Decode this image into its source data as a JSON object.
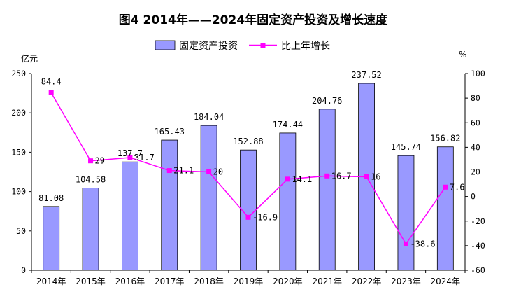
{
  "chart_data": {
    "type": "bar",
    "title": "图4  2014年——2024年固定资产投资及增长速度",
    "categories": [
      "2014年",
      "2015年",
      "2016年",
      "2017年",
      "2018年",
      "2019年",
      "2020年",
      "2021年",
      "2022年",
      "2023年",
      "2024年"
    ],
    "series": [
      {
        "name": "固定资产投资",
        "type": "bar",
        "axis": "left",
        "color": "#9999ff",
        "values": [
          81.08,
          104.58,
          137.7,
          165.43,
          184.04,
          152.88,
          174.44,
          204.76,
          237.52,
          145.74,
          156.82
        ],
        "labels": [
          "81.08",
          "104.58",
          "137.7",
          "165.43",
          "184.04",
          "152.88",
          "174.44",
          "204.76",
          "237.52",
          "145.74",
          "156.82"
        ]
      },
      {
        "name": "比上年增长",
        "type": "line",
        "axis": "right",
        "color": "#ff00ff",
        "values": [
          84.4,
          29,
          31.7,
          21.1,
          20,
          -16.9,
          14.1,
          16.7,
          16,
          -38.6,
          7.6
        ],
        "labels": [
          "84.4",
          "29",
          "31.7",
          "21.1",
          "20",
          "-16.9",
          "14.1",
          "16.7",
          "16",
          "-38.6",
          "7.6"
        ]
      }
    ],
    "y_left": {
      "unit": "亿元",
      "ylim": [
        0,
        250
      ],
      "ticks": [
        "0",
        "50",
        "100",
        "150",
        "200",
        "250"
      ]
    },
    "y_right": {
      "unit": "%",
      "ylim": [
        -60,
        100
      ],
      "ticks": [
        "-60",
        "-40",
        "-20",
        "0",
        "20",
        "40",
        "60",
        "80",
        "100"
      ]
    },
    "legend": "top-center",
    "grid": false
  }
}
